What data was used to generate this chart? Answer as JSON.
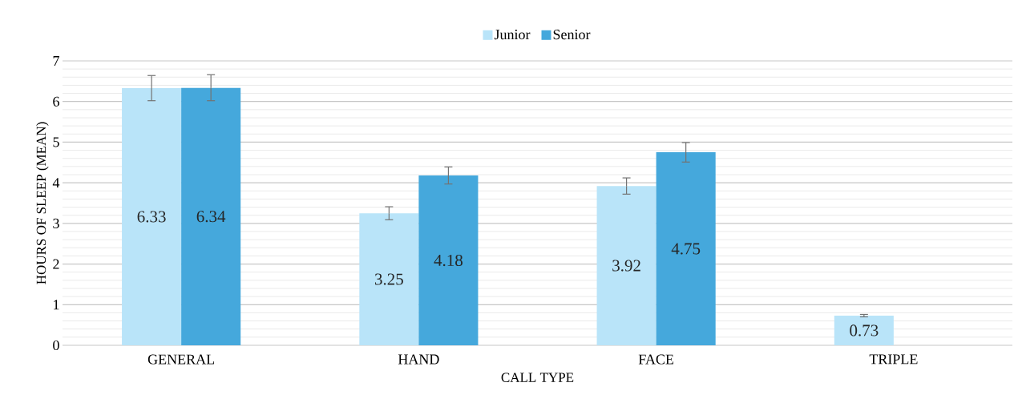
{
  "chart_data": {
    "type": "bar",
    "xlabel": "CALL TYPE",
    "ylabel": "HOURS OF SLEEP (MEAN)",
    "categories": [
      "GENERAL",
      "HAND",
      "FACE",
      "TRIPLE"
    ],
    "series": [
      {
        "name": "Junior",
        "color": "#b9e4f9",
        "values": [
          6.33,
          3.25,
          3.92,
          0.73
        ],
        "errors": [
          0.31,
          0.16,
          0.2,
          0.03
        ],
        "value_labels": [
          "6.33",
          "3.25",
          "3.92",
          "0.73"
        ]
      },
      {
        "name": "Senior",
        "color": "#45a8dc",
        "values": [
          6.34,
          4.18,
          4.75,
          0
        ],
        "errors": [
          0.32,
          0.21,
          0.24,
          null
        ],
        "value_labels": [
          "6.34",
          "4.18",
          "4.75",
          null
        ]
      }
    ],
    "ylim": [
      0,
      7
    ],
    "yticks": [
      0,
      1,
      2,
      3,
      4,
      5,
      6,
      7
    ],
    "grid": "y",
    "legend": "top"
  }
}
